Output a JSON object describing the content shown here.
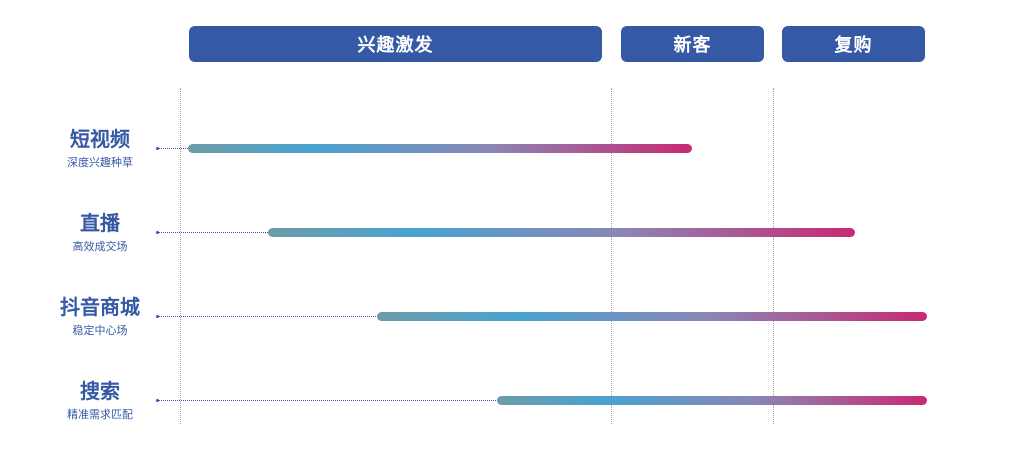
{
  "stages": {
    "interest": "兴趣激发",
    "new_customer": "新客",
    "repurchase": "复购"
  },
  "rows": [
    {
      "title": "短视频",
      "subtitle": "深度兴趣种草"
    },
    {
      "title": "直播",
      "subtitle": "高效成交场"
    },
    {
      "title": "抖音商城",
      "subtitle": "稳定中心场"
    },
    {
      "title": "搜索",
      "subtitle": "精准需求匹配"
    }
  ],
  "colors": {
    "stage_fill": "#3559a5",
    "label_text": "#3559a5",
    "bar_start": "#6d9ca8",
    "bar_mid": "#49a3d0",
    "bar_end": "#c82a73"
  }
}
